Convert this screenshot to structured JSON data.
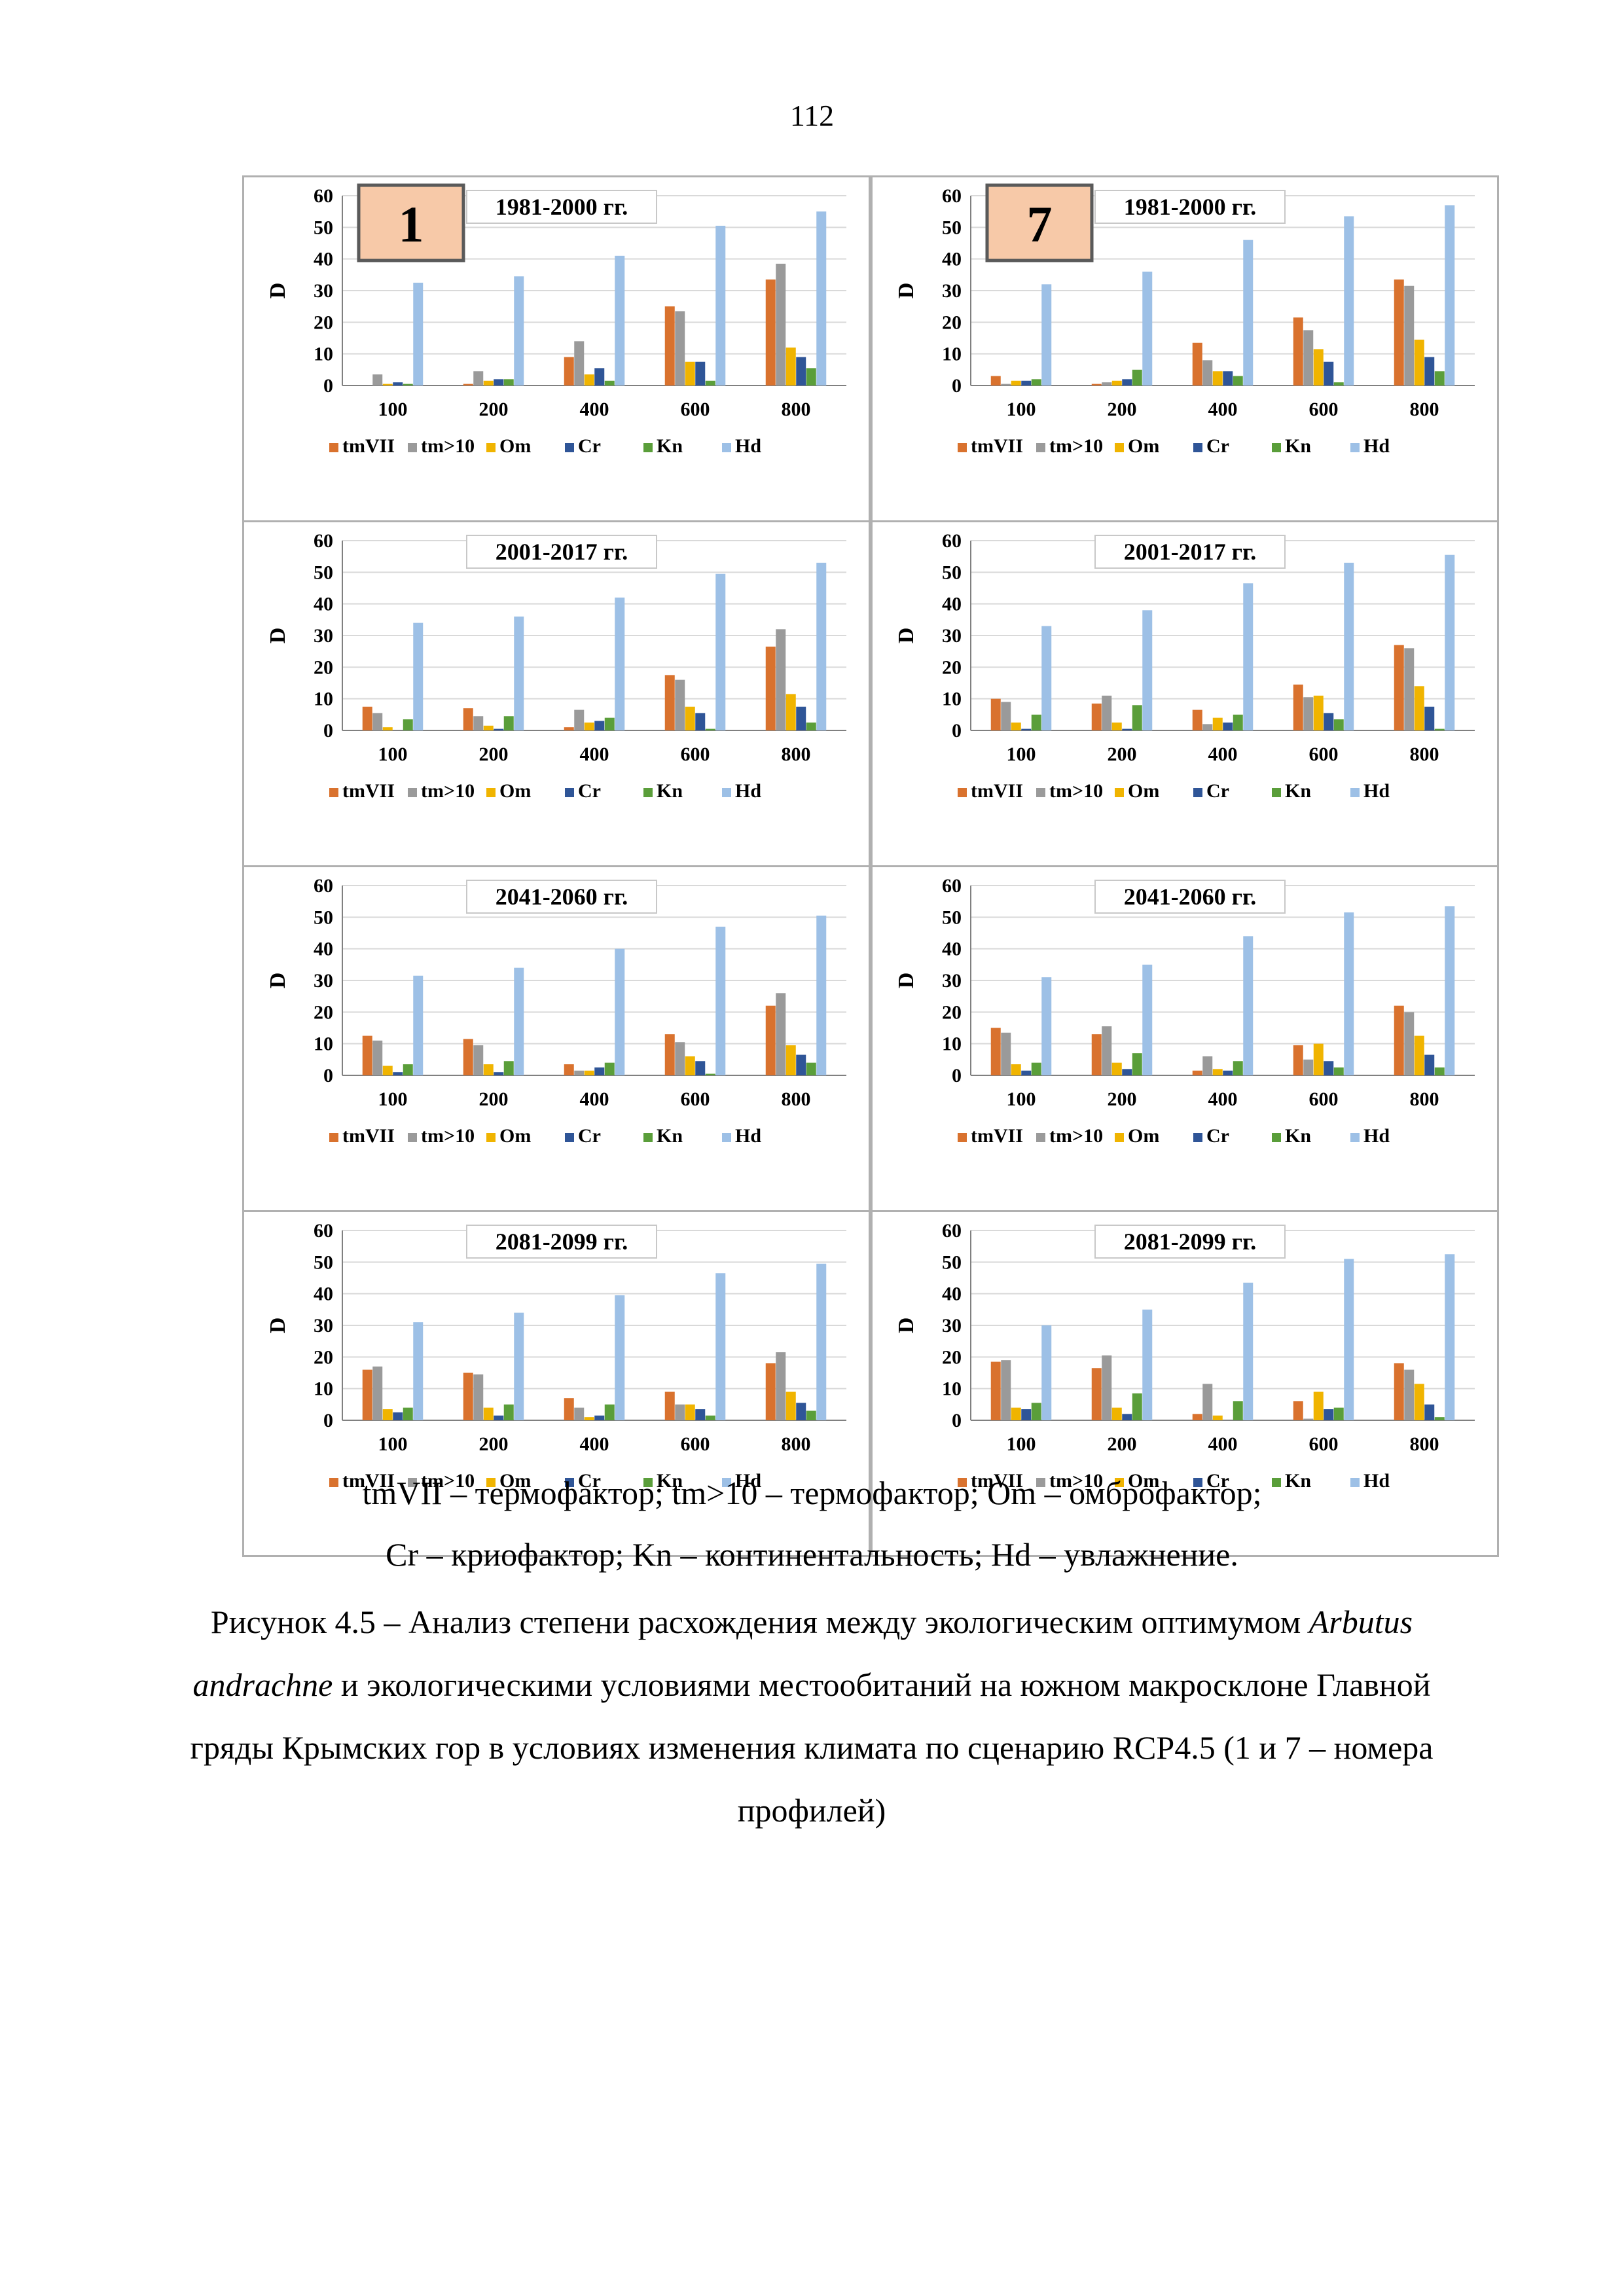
{
  "page_number": "112",
  "legend_lines": [
    "tmVII – термофактор; tm>10 – термофактор; Om – омброфактор;",
    "Cr – криофактор; Kn – континентальность; Hd – увлажнение."
  ],
  "figure_caption": {
    "before_italic_1": "Рисунок 4.5 – Анализ степени расхождения между экологическим оптимумом ",
    "italic_1": "Arbutus andrachne",
    "after_italic_1": " и экологическими условиями местообитаний на южном макросклоне Главной гряды Крымских гор в условиях изменения климата по сценарию RCP4.5 (1 и 7 – номера профилей)"
  },
  "colors": {
    "tmVII": "#d9722e",
    "tm>10": "#9a9a9a",
    "Om": "#f0b400",
    "Cr": "#2f5597",
    "Kn": "#5a9e3a",
    "Hd": "#9dc0e6",
    "profile_box": "#f7c9a8"
  },
  "chart_data": [
    {
      "type": "bar",
      "profile": "1",
      "title": "1981-2000 гг.",
      "ylabel": "D",
      "ylim": [
        0,
        60
      ],
      "yticks": [
        0,
        10,
        20,
        30,
        40,
        50,
        60
      ],
      "categories": [
        "100",
        "200",
        "400",
        "600",
        "800"
      ],
      "series": [
        {
          "name": "tmVII",
          "values": [
            0,
            0.5,
            9,
            25,
            33.5
          ]
        },
        {
          "name": "tm>10",
          "values": [
            3.5,
            4.5,
            14,
            23.5,
            38.5
          ]
        },
        {
          "name": "Om",
          "values": [
            0.5,
            1.5,
            3.5,
            7.5,
            12
          ]
        },
        {
          "name": "Cr",
          "values": [
            1,
            2,
            5.5,
            7.5,
            9
          ]
        },
        {
          "name": "Kn",
          "values": [
            0.5,
            2,
            1.5,
            1.5,
            5.5
          ]
        },
        {
          "name": "Hd",
          "values": [
            32.5,
            34.5,
            41,
            50.5,
            55
          ]
        }
      ],
      "legend": "bottom"
    },
    {
      "type": "bar",
      "profile": "7",
      "title": "1981-2000 гг.",
      "ylabel": "D",
      "ylim": [
        0,
        60
      ],
      "yticks": [
        0,
        10,
        20,
        30,
        40,
        50,
        60
      ],
      "categories": [
        "100",
        "200",
        "400",
        "600",
        "800"
      ],
      "series": [
        {
          "name": "tmVII",
          "values": [
            3,
            0.5,
            13.5,
            21.5,
            33.5
          ]
        },
        {
          "name": "tm>10",
          "values": [
            0.5,
            1,
            8,
            17.5,
            31.5
          ]
        },
        {
          "name": "Om",
          "values": [
            1.5,
            1.5,
            4.5,
            11.5,
            14.5
          ]
        },
        {
          "name": "Cr",
          "values": [
            1.5,
            2,
            4.5,
            7.5,
            9
          ]
        },
        {
          "name": "Kn",
          "values": [
            2,
            5,
            3,
            1,
            4.5
          ]
        },
        {
          "name": "Hd",
          "values": [
            32,
            36,
            46,
            53.5,
            57
          ]
        }
      ],
      "legend": "bottom"
    },
    {
      "type": "bar",
      "profile": "1",
      "title": "2001-2017 гг.",
      "ylabel": "D",
      "ylim": [
        0,
        60
      ],
      "yticks": [
        0,
        10,
        20,
        30,
        40,
        50,
        60
      ],
      "categories": [
        "100",
        "200",
        "400",
        "600",
        "800"
      ],
      "series": [
        {
          "name": "tmVII",
          "values": [
            7.5,
            7,
            1,
            17.5,
            26.5
          ]
        },
        {
          "name": "tm>10",
          "values": [
            5.5,
            4.5,
            6.5,
            16,
            32
          ]
        },
        {
          "name": "Om",
          "values": [
            1,
            1.5,
            2.5,
            7.5,
            11.5
          ]
        },
        {
          "name": "Cr",
          "values": [
            0,
            0.5,
            3,
            5.5,
            7.5
          ]
        },
        {
          "name": "Kn",
          "values": [
            3.5,
            4.5,
            4,
            0.5,
            2.5
          ]
        },
        {
          "name": "Hd",
          "values": [
            34,
            36,
            42,
            49.5,
            53
          ]
        }
      ],
      "legend": "bottom"
    },
    {
      "type": "bar",
      "profile": "7",
      "title": "2001-2017 гг.",
      "ylabel": "D",
      "ylim": [
        0,
        60
      ],
      "yticks": [
        0,
        10,
        20,
        30,
        40,
        50,
        60
      ],
      "categories": [
        "100",
        "200",
        "400",
        "600",
        "800"
      ],
      "series": [
        {
          "name": "tmVII",
          "values": [
            10,
            8.5,
            6.5,
            14.5,
            27
          ]
        },
        {
          "name": "tm>10",
          "values": [
            9,
            11,
            2,
            10.5,
            26
          ]
        },
        {
          "name": "Om",
          "values": [
            2.5,
            2.5,
            4,
            11,
            14
          ]
        },
        {
          "name": "Cr",
          "values": [
            0.5,
            0.5,
            2.5,
            5.5,
            7.5
          ]
        },
        {
          "name": "Kn",
          "values": [
            5,
            8,
            5,
            3.5,
            0.5
          ]
        },
        {
          "name": "Hd",
          "values": [
            33,
            38,
            46.5,
            53,
            55.5
          ]
        }
      ],
      "legend": "bottom"
    },
    {
      "type": "bar",
      "profile": "1",
      "title": "2041-2060 гг.",
      "ylabel": "D",
      "ylim": [
        0,
        60
      ],
      "yticks": [
        0,
        10,
        20,
        30,
        40,
        50,
        60
      ],
      "categories": [
        "100",
        "200",
        "400",
        "600",
        "800"
      ],
      "series": [
        {
          "name": "tmVII",
          "values": [
            12.5,
            11.5,
            3.5,
            13,
            22
          ]
        },
        {
          "name": "tm>10",
          "values": [
            11,
            9.5,
            1.5,
            10.5,
            26
          ]
        },
        {
          "name": "Om",
          "values": [
            3,
            3.5,
            1.5,
            6,
            9.5
          ]
        },
        {
          "name": "Cr",
          "values": [
            1,
            1,
            2.5,
            4.5,
            6.5
          ]
        },
        {
          "name": "Kn",
          "values": [
            3.5,
            4.5,
            4,
            0.5,
            4
          ]
        },
        {
          "name": "Hd",
          "values": [
            31.5,
            34,
            40,
            47,
            50.5
          ]
        }
      ],
      "legend": "bottom"
    },
    {
      "type": "bar",
      "profile": "7",
      "title": "2041-2060 гг.",
      "ylabel": "D",
      "ylim": [
        0,
        60
      ],
      "yticks": [
        0,
        10,
        20,
        30,
        40,
        50,
        60
      ],
      "categories": [
        "100",
        "200",
        "400",
        "600",
        "800"
      ],
      "series": [
        {
          "name": "tmVII",
          "values": [
            15,
            13,
            1.5,
            9.5,
            22
          ]
        },
        {
          "name": "tm>10",
          "values": [
            13.5,
            15.5,
            6,
            5,
            20
          ]
        },
        {
          "name": "Om",
          "values": [
            3.5,
            4,
            2,
            10,
            12.5
          ]
        },
        {
          "name": "Cr",
          "values": [
            1.5,
            2,
            1.5,
            4.5,
            6.5
          ]
        },
        {
          "name": "Kn",
          "values": [
            4,
            7,
            4.5,
            2.5,
            2.5
          ]
        },
        {
          "name": "Hd",
          "values": [
            31,
            35,
            44,
            51.5,
            53.5
          ]
        }
      ],
      "legend": "bottom"
    },
    {
      "type": "bar",
      "profile": "1",
      "title": "2081-2099 гг.",
      "ylabel": "D",
      "ylim": [
        0,
        60
      ],
      "yticks": [
        0,
        10,
        20,
        30,
        40,
        50,
        60
      ],
      "categories": [
        "100",
        "200",
        "400",
        "600",
        "800"
      ],
      "series": [
        {
          "name": "tmVII",
          "values": [
            16,
            15,
            7,
            9,
            18
          ]
        },
        {
          "name": "tm>10",
          "values": [
            17,
            14.5,
            4,
            5,
            21.5
          ]
        },
        {
          "name": "Om",
          "values": [
            3.5,
            4,
            1,
            5,
            9
          ]
        },
        {
          "name": "Cr",
          "values": [
            2.5,
            1.5,
            1.5,
            3.5,
            5.5
          ]
        },
        {
          "name": "Kn",
          "values": [
            4,
            5,
            5,
            1.5,
            3
          ]
        },
        {
          "name": "Hd",
          "values": [
            31,
            34,
            39.5,
            46.5,
            49.5
          ]
        }
      ],
      "legend": "bottom"
    },
    {
      "type": "bar",
      "profile": "7",
      "title": "2081-2099 гг.",
      "ylabel": "D",
      "ylim": [
        0,
        60
      ],
      "yticks": [
        0,
        10,
        20,
        30,
        40,
        50,
        60
      ],
      "categories": [
        "100",
        "200",
        "400",
        "600",
        "800"
      ],
      "series": [
        {
          "name": "tmVII",
          "values": [
            18.5,
            16.5,
            2,
            6,
            18
          ]
        },
        {
          "name": "tm>10",
          "values": [
            19,
            20.5,
            11.5,
            0.5,
            16
          ]
        },
        {
          "name": "Om",
          "values": [
            4,
            4,
            1.5,
            9,
            11.5
          ]
        },
        {
          "name": "Cr",
          "values": [
            3.5,
            2,
            0,
            3.5,
            5
          ]
        },
        {
          "name": "Kn",
          "values": [
            5.5,
            8.5,
            6,
            4,
            1
          ]
        },
        {
          "name": "Hd",
          "values": [
            30,
            35,
            43.5,
            51,
            52.5
          ]
        }
      ],
      "legend": "bottom"
    }
  ]
}
